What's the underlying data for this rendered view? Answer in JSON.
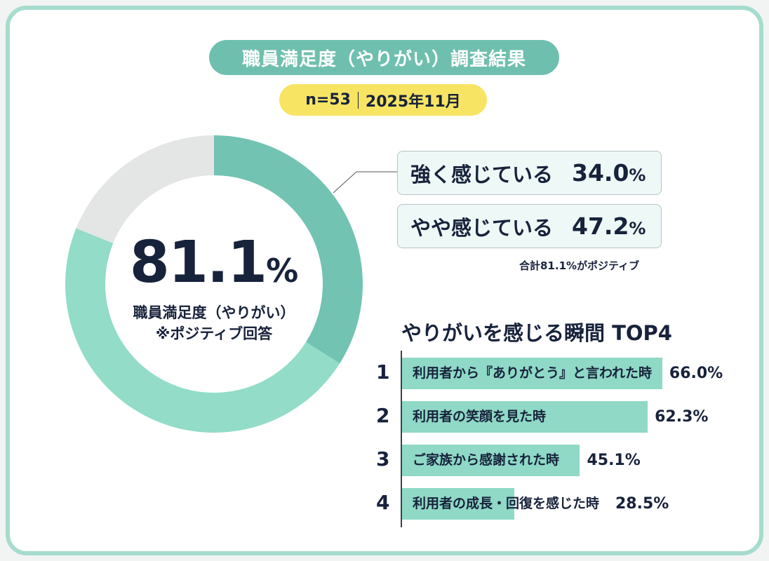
{
  "header": {
    "title": "職員満足度（やりがい）調査結果",
    "sample": "n=53",
    "date": "2025年11月"
  },
  "colors": {
    "strong": "#72c3b2",
    "somewhat": "#92dcc8",
    "other": "#e4e6e5",
    "bar": "#8fd9c6",
    "title_pill": "#6fbfae",
    "meta_pill": "#f7e463",
    "text": "#17223b"
  },
  "chart_data": [
    {
      "type": "pie",
      "donut": true,
      "start": "top, clockwise",
      "series": [
        {
          "name": "強く感じている",
          "value": 34.0
        },
        {
          "name": "やや感じている",
          "value": 47.2
        },
        {
          "value": 18.9
        }
      ],
      "center": {
        "value": "81.1",
        "unit": "%",
        "label": "職員満足度（やりがい）",
        "sublabel": "※ポジティブ回答"
      },
      "legend": [
        {
          "label": "強く感じている",
          "value": "34.0",
          "unit": "%"
        },
        {
          "label": "やや感じている",
          "value": "47.2",
          "unit": "%"
        }
      ],
      "note": "合計81.1%がポジティブ"
    },
    {
      "type": "bar",
      "orientation": "horizontal",
      "title": "やりがいを感じる瞬間 TOP4",
      "categories": [
        "利用者から『ありがとう』と言われた時",
        "利用者の笑顔を見た時",
        "ご家族から感謝された時",
        "利用者の成長・回復を感じた時"
      ],
      "ranks": [
        "1",
        "2",
        "3",
        "4"
      ],
      "values": [
        66.0,
        62.3,
        45.1,
        28.5
      ],
      "labels": [
        "66.0%",
        "62.3%",
        "45.1%",
        "28.5%"
      ]
    }
  ]
}
